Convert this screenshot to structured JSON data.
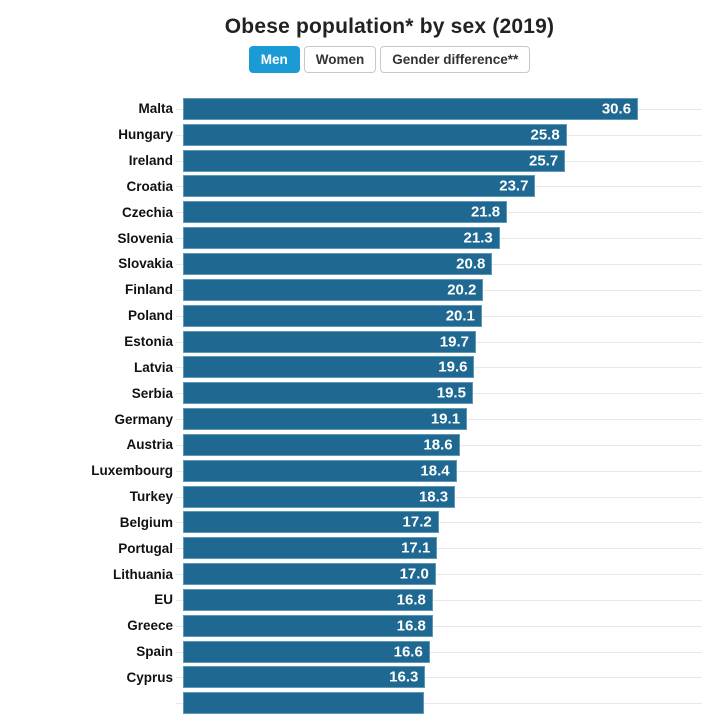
{
  "header": {
    "title": "Obese population* by sex (2019)"
  },
  "tabs": [
    {
      "label": "Men",
      "active": true
    },
    {
      "label": "Women",
      "active": false
    },
    {
      "label": "Gender difference**",
      "active": false
    }
  ],
  "chart_data": {
    "type": "bar",
    "orientation": "horizontal",
    "title": "Obese population* by sex (2019)",
    "series_name": "Men",
    "categories": [
      "Malta",
      "Hungary",
      "Ireland",
      "Croatia",
      "Czechia",
      "Slovenia",
      "Slovakia",
      "Finland",
      "Poland",
      "Estonia",
      "Latvia",
      "Serbia",
      "Germany",
      "Austria",
      "Luxembourg",
      "Turkey",
      "Belgium",
      "Portugal",
      "Lithuania",
      "EU",
      "Greece",
      "Spain",
      "Cyprus"
    ],
    "values": [
      30.6,
      25.8,
      25.7,
      23.7,
      21.8,
      21.3,
      20.8,
      20.2,
      20.1,
      19.7,
      19.6,
      19.5,
      19.1,
      18.6,
      18.4,
      18.3,
      17.2,
      17.1,
      17.0,
      16.8,
      16.8,
      16.6,
      16.3
    ],
    "value_labels": "inside-bar-right",
    "xlabel": "",
    "ylabel": "",
    "xlim": [
      0,
      34.9
    ],
    "grid": true,
    "legend_position": "none",
    "partial_bottom_bar": {
      "visible": true,
      "approx_value": 16.2
    },
    "colors": {
      "bar": "#1e6892",
      "value_label": "#ffffff",
      "gridline": "#e8e8e8",
      "active_tab": "#1c9ad6",
      "title_text": "#222222",
      "category_label": "#111111"
    }
  }
}
